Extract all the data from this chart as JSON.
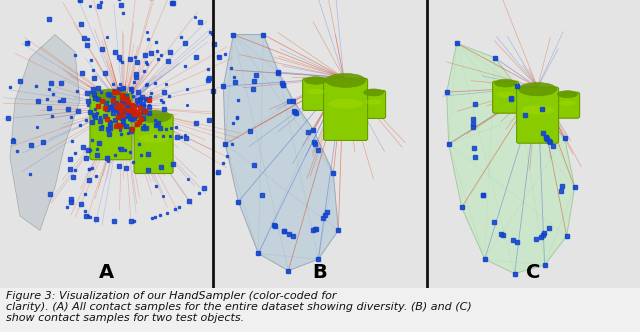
{
  "panels": [
    "A",
    "B",
    "C"
  ],
  "panel_label_fontsize": 14,
  "panel_label_color": "#000000",
  "caption_line1": "Figure 3: Visualization of our HandSampler (color-coded for",
  "caption_line2": "clarity). (A) All contact samples for the entire dataset showing diversity. (B) and (C)",
  "caption_line3": "show contact samples for two test objects.",
  "caption_fontsize": 8,
  "bg_color": "#e8e8e8",
  "panel_bg": "#e0e0e0",
  "figure_bg": "#e8e8e8",
  "divider_color": "#222222",
  "hand_gray": "#b8c4cc",
  "hand_blue_gray": "#b0bece",
  "hand_green": "#c8e8c0",
  "object_green": "#88cc00",
  "object_green_dark": "#669900",
  "line_red": "#dd3300",
  "line_blue": "#4466cc",
  "dot_blue": "#1144cc",
  "dot_red": "#cc2200"
}
